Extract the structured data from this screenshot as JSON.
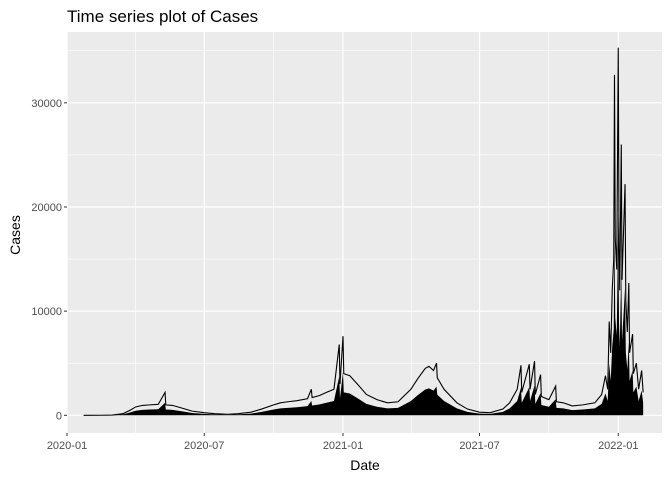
{
  "chart_data": {
    "type": "line",
    "title": "Time series plot of Cases",
    "xlabel": "Date",
    "ylabel": "Cases",
    "x_ticks": [
      "2020-01",
      "2020-07",
      "2021-01",
      "2021-07",
      "2022-01"
    ],
    "y_ticks": [
      "0",
      "10000",
      "20000",
      "30000"
    ],
    "xlim": [
      "2020-01-01",
      "2022-02-28"
    ],
    "ylim": [
      -1700,
      36800
    ],
    "grid": true,
    "background": "#ebebeb",
    "series": [
      {
        "color": "#000000",
        "points": [
          [
            "2020-01-23",
            0
          ],
          [
            "2020-02-15",
            5
          ],
          [
            "2020-03-01",
            20
          ],
          [
            "2020-03-15",
            150
          ],
          [
            "2020-03-25",
            500
          ],
          [
            "2020-04-01",
            800
          ],
          [
            "2020-04-10",
            950
          ],
          [
            "2020-04-20",
            1000
          ],
          [
            "2020-05-01",
            1050
          ],
          [
            "2020-05-10",
            2200
          ],
          [
            "2020-05-11",
            1000
          ],
          [
            "2020-05-20",
            950
          ],
          [
            "2020-06-01",
            700
          ],
          [
            "2020-06-15",
            400
          ],
          [
            "2020-07-01",
            250
          ],
          [
            "2020-07-15",
            150
          ],
          [
            "2020-08-01",
            100
          ],
          [
            "2020-08-15",
            150
          ],
          [
            "2020-09-01",
            300
          ],
          [
            "2020-09-15",
            600
          ],
          [
            "2020-10-01",
            1000
          ],
          [
            "2020-10-10",
            1200
          ],
          [
            "2020-10-20",
            1300
          ],
          [
            "2020-11-01",
            1400
          ],
          [
            "2020-11-15",
            1600
          ],
          [
            "2020-11-20",
            2500
          ],
          [
            "2020-11-21",
            1700
          ],
          [
            "2020-12-01",
            1900
          ],
          [
            "2020-12-10",
            2200
          ],
          [
            "2020-12-20",
            2500
          ],
          [
            "2020-12-27",
            6800
          ],
          [
            "2020-12-28",
            3000
          ],
          [
            "2021-01-01",
            7600
          ],
          [
            "2021-01-02",
            4000
          ],
          [
            "2021-01-10",
            3800
          ],
          [
            "2021-01-20",
            3000
          ],
          [
            "2021-02-01",
            2000
          ],
          [
            "2021-02-15",
            1500
          ],
          [
            "2021-03-01",
            1200
          ],
          [
            "2021-03-15",
            1300
          ],
          [
            "2021-04-01",
            2500
          ],
          [
            "2021-04-10",
            3500
          ],
          [
            "2021-04-20",
            4500
          ],
          [
            "2021-04-25",
            4700
          ],
          [
            "2021-05-01",
            4300
          ],
          [
            "2021-05-05",
            5000
          ],
          [
            "2021-05-06",
            3600
          ],
          [
            "2021-05-15",
            2500
          ],
          [
            "2021-06-01",
            1200
          ],
          [
            "2021-06-15",
            600
          ],
          [
            "2021-07-01",
            300
          ],
          [
            "2021-07-15",
            250
          ],
          [
            "2021-08-01",
            600
          ],
          [
            "2021-08-10",
            1200
          ],
          [
            "2021-08-20",
            2500
          ],
          [
            "2021-08-25",
            4800
          ],
          [
            "2021-08-26",
            2200
          ],
          [
            "2021-09-05",
            4900
          ],
          [
            "2021-09-06",
            2500
          ],
          [
            "2021-09-12",
            5200
          ],
          [
            "2021-09-13",
            2000
          ],
          [
            "2021-09-20",
            3900
          ],
          [
            "2021-09-21",
            1800
          ],
          [
            "2021-10-01",
            1500
          ],
          [
            "2021-10-10",
            2800
          ],
          [
            "2021-10-11",
            1300
          ],
          [
            "2021-10-20",
            1200
          ],
          [
            "2021-11-01",
            900
          ],
          [
            "2021-11-15",
            1000
          ],
          [
            "2021-12-01",
            1200
          ],
          [
            "2021-12-10",
            2000
          ],
          [
            "2021-12-15",
            3800
          ],
          [
            "2021-12-18",
            2500
          ],
          [
            "2021-12-20",
            9000
          ],
          [
            "2021-12-22",
            6000
          ],
          [
            "2021-12-24",
            12000
          ],
          [
            "2021-12-26",
            15000
          ],
          [
            "2021-12-27",
            32700
          ],
          [
            "2021-12-28",
            17000
          ],
          [
            "2021-12-30",
            14000
          ],
          [
            "2022-01-01",
            35300
          ],
          [
            "2022-01-02",
            16000
          ],
          [
            "2022-01-03",
            12000
          ],
          [
            "2022-01-05",
            26000
          ],
          [
            "2022-01-06",
            13000
          ],
          [
            "2022-01-10",
            22200
          ],
          [
            "2022-01-11",
            11000
          ],
          [
            "2022-01-13",
            8000
          ],
          [
            "2022-01-15",
            12700
          ],
          [
            "2022-01-16",
            6000
          ],
          [
            "2022-01-20",
            7800
          ],
          [
            "2022-01-21",
            4000
          ],
          [
            "2022-01-25",
            5000
          ],
          [
            "2022-01-28",
            2500
          ],
          [
            "2022-02-01",
            4300
          ],
          [
            "2022-02-03",
            2200
          ]
        ]
      }
    ]
  }
}
